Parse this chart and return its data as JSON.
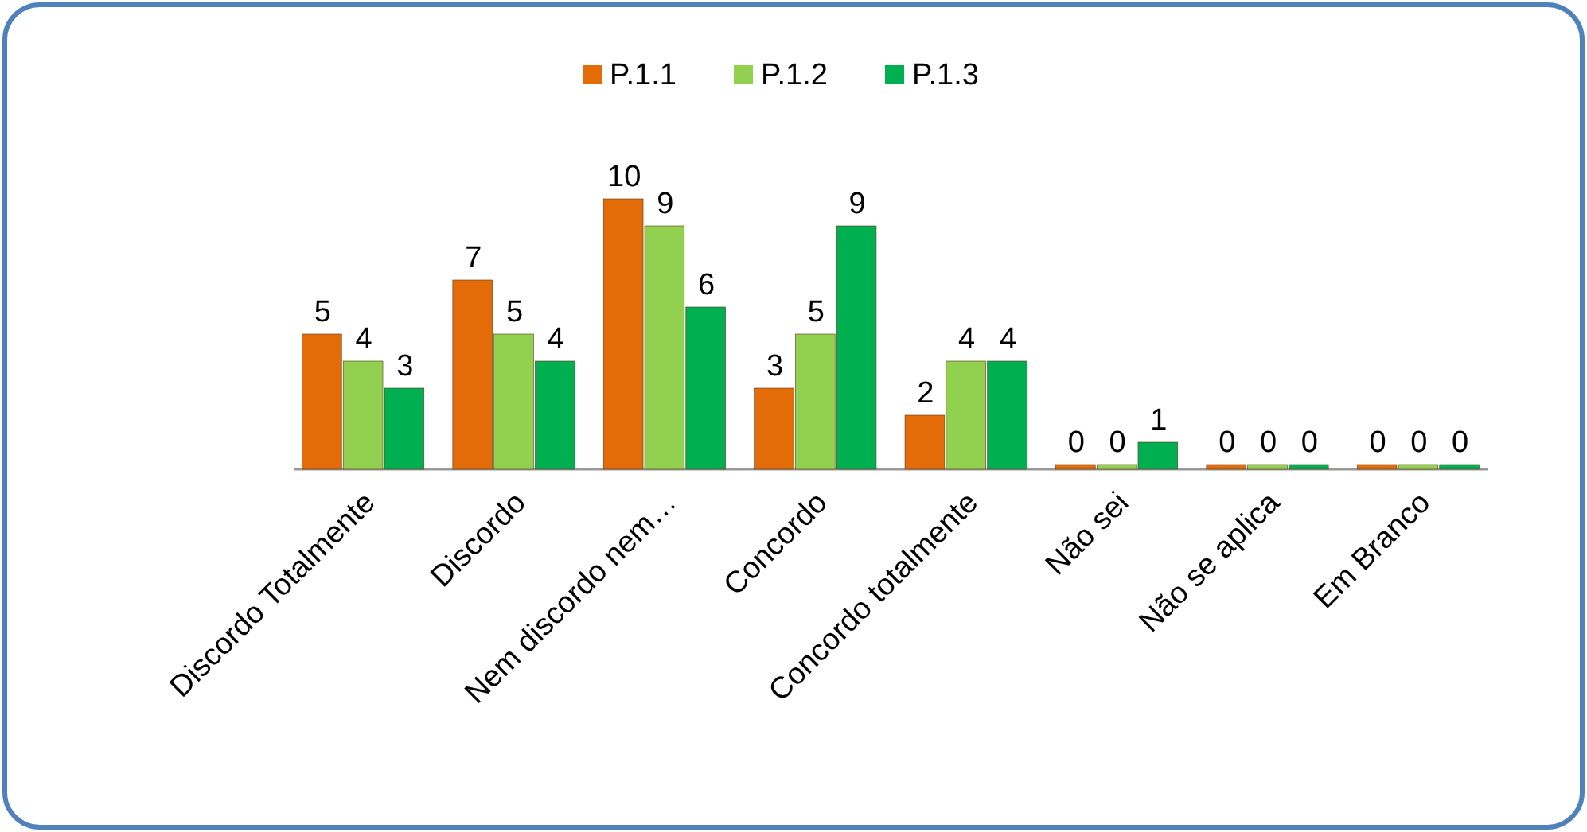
{
  "chart_data": {
    "type": "bar",
    "categories": [
      "Discordo Totalmente",
      "Discordo",
      "Nem discordo nem…",
      "Concordo",
      "Concordo totalmente",
      "Não sei",
      "Não se aplica",
      "Em Branco"
    ],
    "series": [
      {
        "name": "P.1.1",
        "color": "#e36c09",
        "values": [
          5,
          7,
          10,
          3,
          2,
          0,
          0,
          0
        ]
      },
      {
        "name": "P.1.2",
        "color": "#92d050",
        "values": [
          4,
          5,
          9,
          5,
          4,
          0,
          0,
          0
        ]
      },
      {
        "name": "P.1.3",
        "color": "#00b050",
        "values": [
          3,
          4,
          6,
          9,
          4,
          1,
          0,
          0
        ]
      }
    ],
    "data_labels": true,
    "legend": "top",
    "grid": false
  }
}
